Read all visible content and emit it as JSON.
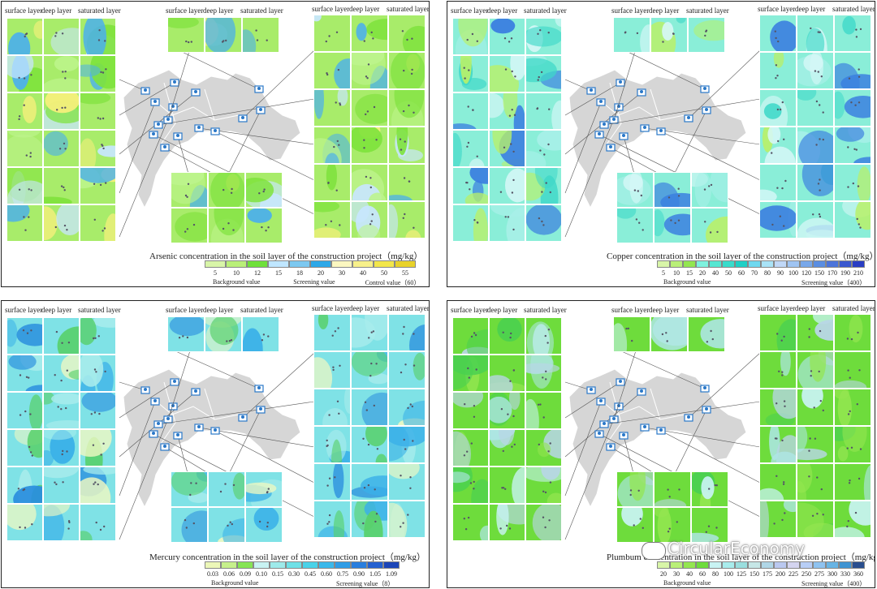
{
  "layer_labels": {
    "surface": "surface layer",
    "deep": "deep layer",
    "saturated": "saturated layer"
  },
  "panels": [
    {
      "id": "arsenic",
      "title": "Arsenic concentration in the soil layer of the construction project（mg/kg）",
      "legend_values": [
        "5",
        "10",
        "12",
        "15",
        "18",
        "20",
        "30",
        "40",
        "50",
        "55"
      ],
      "legend_colors": [
        "#d8f5a8",
        "#b9ef78",
        "#6fe03a",
        "#bfe6ff",
        "#7cc8f0",
        "#2da8e8",
        "#fbf7c0",
        "#f7f08a",
        "#f2e64a",
        "#e8d22a"
      ],
      "legend_captions": [
        "Background value",
        "Screening value",
        "Control value（60）"
      ],
      "base_color": "#a8ec6a",
      "accents": [
        "#bdf48c",
        "#7ee23c",
        "#c8e6ff",
        "#f6f07c",
        "#4cb0ea"
      ]
    },
    {
      "id": "copper",
      "title": "Copper concentration in the soil layer of the construction project（mg/kg）",
      "legend_values": [
        "5",
        "10",
        "15",
        "20",
        "40",
        "50",
        "60",
        "70",
        "80",
        "90",
        "100",
        "120",
        "150",
        "170",
        "190",
        "210"
      ],
      "legend_colors": [
        "#d8f5a8",
        "#b9ef78",
        "#93e650",
        "#7ef2de",
        "#56e7d2",
        "#38dccb",
        "#1fd0c6",
        "#6ed8ef",
        "#a9e3f7",
        "#c0d8f7",
        "#9fc4f2",
        "#78a8ea",
        "#5a8ee2",
        "#4c74da",
        "#3a58cf",
        "#2a3ec4"
      ],
      "legend_captions": [
        "Background value",
        "Screening value（400）"
      ],
      "base_color": "#8aeed8",
      "accents": [
        "#a7f0e8",
        "#b8f06a",
        "#3ed8c8",
        "#d6f7f7",
        "#3a7ee0"
      ]
    },
    {
      "id": "mercury",
      "title": "Mercury concentration in the soil layer of the construction project（mg/kg）",
      "legend_values": [
        "0.03",
        "0.06",
        "0.09",
        "0.10",
        "0.15",
        "0.30",
        "0.45",
        "0.60",
        "0.75",
        "0.90",
        "1.05",
        "1.09"
      ],
      "legend_colors": [
        "#ecf7b8",
        "#c6f08c",
        "#86e454",
        "#c8f3f3",
        "#9eeaea",
        "#6ee0e6",
        "#49d2e8",
        "#3ab8ea",
        "#2e9ce6",
        "#2a7ede",
        "#2460d0",
        "#1c46b8"
      ],
      "legend_captions": [
        "Background value",
        "Screening value（8）"
      ],
      "base_color": "#7fe2e6",
      "accents": [
        "#a8ecec",
        "#58d06a",
        "#3ab0e8",
        "#eef8c2",
        "#2a8ede"
      ]
    },
    {
      "id": "plumbum",
      "title": "Plumbum concentration in the soil layer of the construction project（mg/kg）",
      "legend_values": [
        "20",
        "30",
        "40",
        "60",
        "80",
        "100",
        "125",
        "150",
        "175",
        "200",
        "225",
        "250",
        "275",
        "300",
        "330",
        "360"
      ],
      "legend_colors": [
        "#d8f5a8",
        "#b9ef78",
        "#93e650",
        "#6edc3c",
        "#c8f3f3",
        "#a8ecec",
        "#9adede",
        "#c6e6e6",
        "#b0d6e6",
        "#bac8ef",
        "#d4d4ef",
        "#b8cef6",
        "#8ec2f0",
        "#68b4e4",
        "#3f94d2",
        "#2a4e8e"
      ],
      "legend_captions": [
        "Background value",
        "Screening value（400）"
      ],
      "base_color": "#6edc3c",
      "accents": [
        "#93e650",
        "#c8f3f3",
        "#4ad050",
        "#b8d6e6",
        "#aee6e6"
      ]
    }
  ],
  "watermark": {
    "text": "CircularEconomy"
  },
  "icons": {
    "marker": "monitoring-point-icon",
    "logo": "wechat-logo-icon"
  }
}
